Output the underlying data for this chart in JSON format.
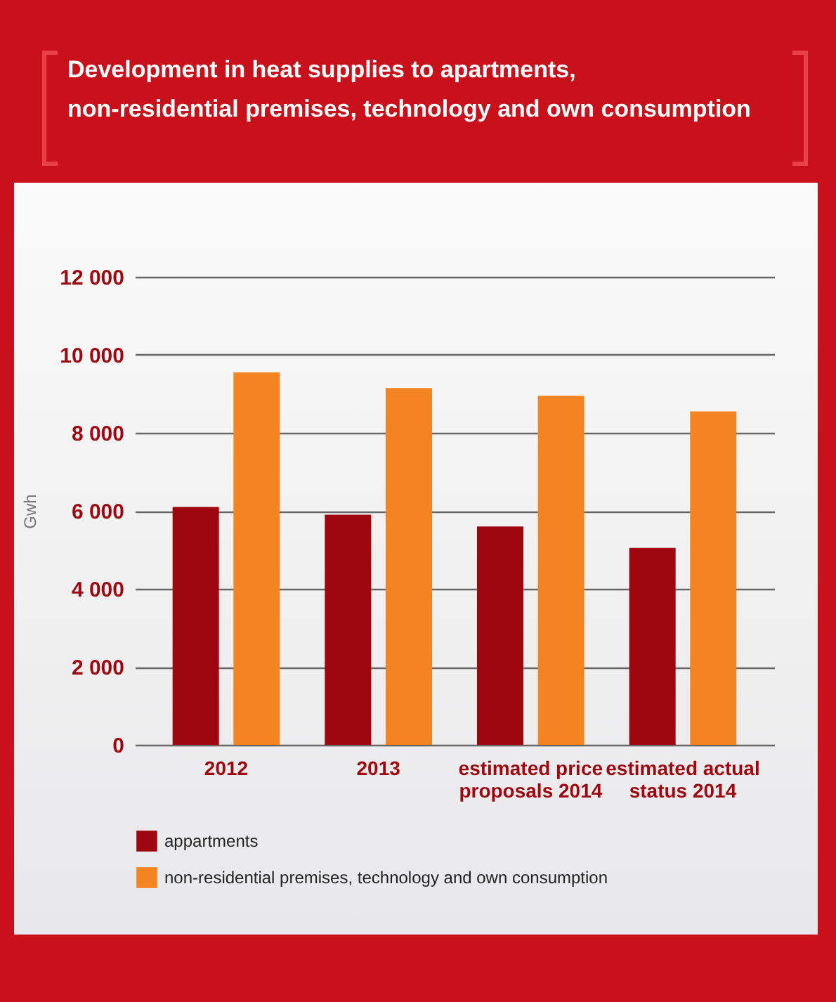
{
  "chart_data": {
    "type": "bar",
    "title": "Development in heat supplies to apartments,\nnon-residential premises, technology and own consumption",
    "ylabel": "Gwh",
    "categories": [
      "2012",
      "2013",
      "estimated price proposals 2014",
      "estimated actual status 2014"
    ],
    "series": [
      {
        "name": "appartments",
        "color": "#9e0710",
        "values": [
          6100,
          5900,
          5600,
          5050
        ]
      },
      {
        "name": "non-residential premises, technology and own consumption",
        "color": "#f38421",
        "values": [
          9550,
          9150,
          8950,
          8550
        ]
      }
    ],
    "ylim": [
      0,
      12000
    ],
    "yticks": [
      {
        "value": 0,
        "label": "0"
      },
      {
        "value": 2000,
        "label": "2 000"
      },
      {
        "value": 4000,
        "label": "4 000"
      },
      {
        "value": 6000,
        "label": "6 000"
      },
      {
        "value": 8000,
        "label": "8 000"
      },
      {
        "value": 10000,
        "label": "10 000"
      },
      {
        "value": 12000,
        "label": "12 000"
      }
    ],
    "grid": "y",
    "legend": "bottom left"
  }
}
